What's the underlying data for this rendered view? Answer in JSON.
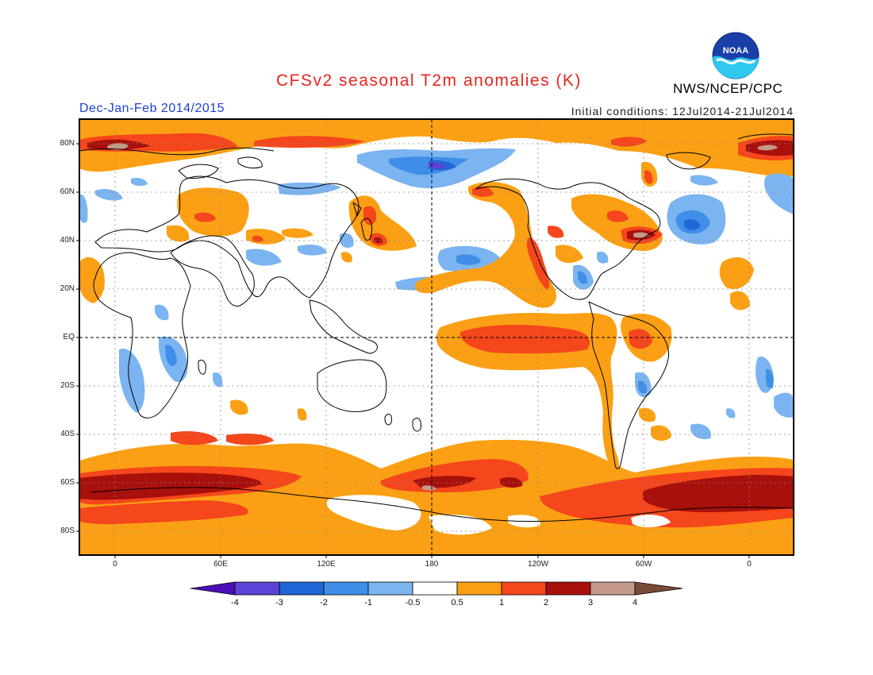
{
  "title": "CFSv2 seasonal T2m anomalies (K)",
  "period": "Dec-Jan-Feb 2014/2015",
  "initial_conditions": "Initial conditions: 12Jul2014-21Jul2014",
  "agency": "NWS/NCEP/CPC",
  "logo_text": "NOAA",
  "lat_labels": [
    "80N",
    "60N",
    "40N",
    "20N",
    "EQ",
    "20S",
    "40S",
    "60S",
    "80S"
  ],
  "lon_labels": [
    "0",
    "60E",
    "120E",
    "180",
    "120W",
    "60W",
    "0"
  ],
  "colorbar": {
    "labels": [
      "-4",
      "-3",
      "-2",
      "-1",
      "-0.5",
      "0.5",
      "1",
      "2",
      "3",
      "4"
    ],
    "colors": [
      "#4a0fb8",
      "#5a44d8",
      "#2166d8",
      "#3f8fe8",
      "#7bb4f0",
      "#ffffff",
      "#fba014",
      "#f5461c",
      "#a8100c",
      "#c49a8a",
      "#7a4a3a"
    ]
  },
  "colors": {
    "ocean_warm": "#fba014",
    "strong_warm": "#f5461c",
    "very_warm": "#a8100c",
    "extreme_warm": "#c49a8a",
    "cool": "#7bb4f0",
    "cooler": "#3f8fe8",
    "coolest": "#2166d8"
  }
}
